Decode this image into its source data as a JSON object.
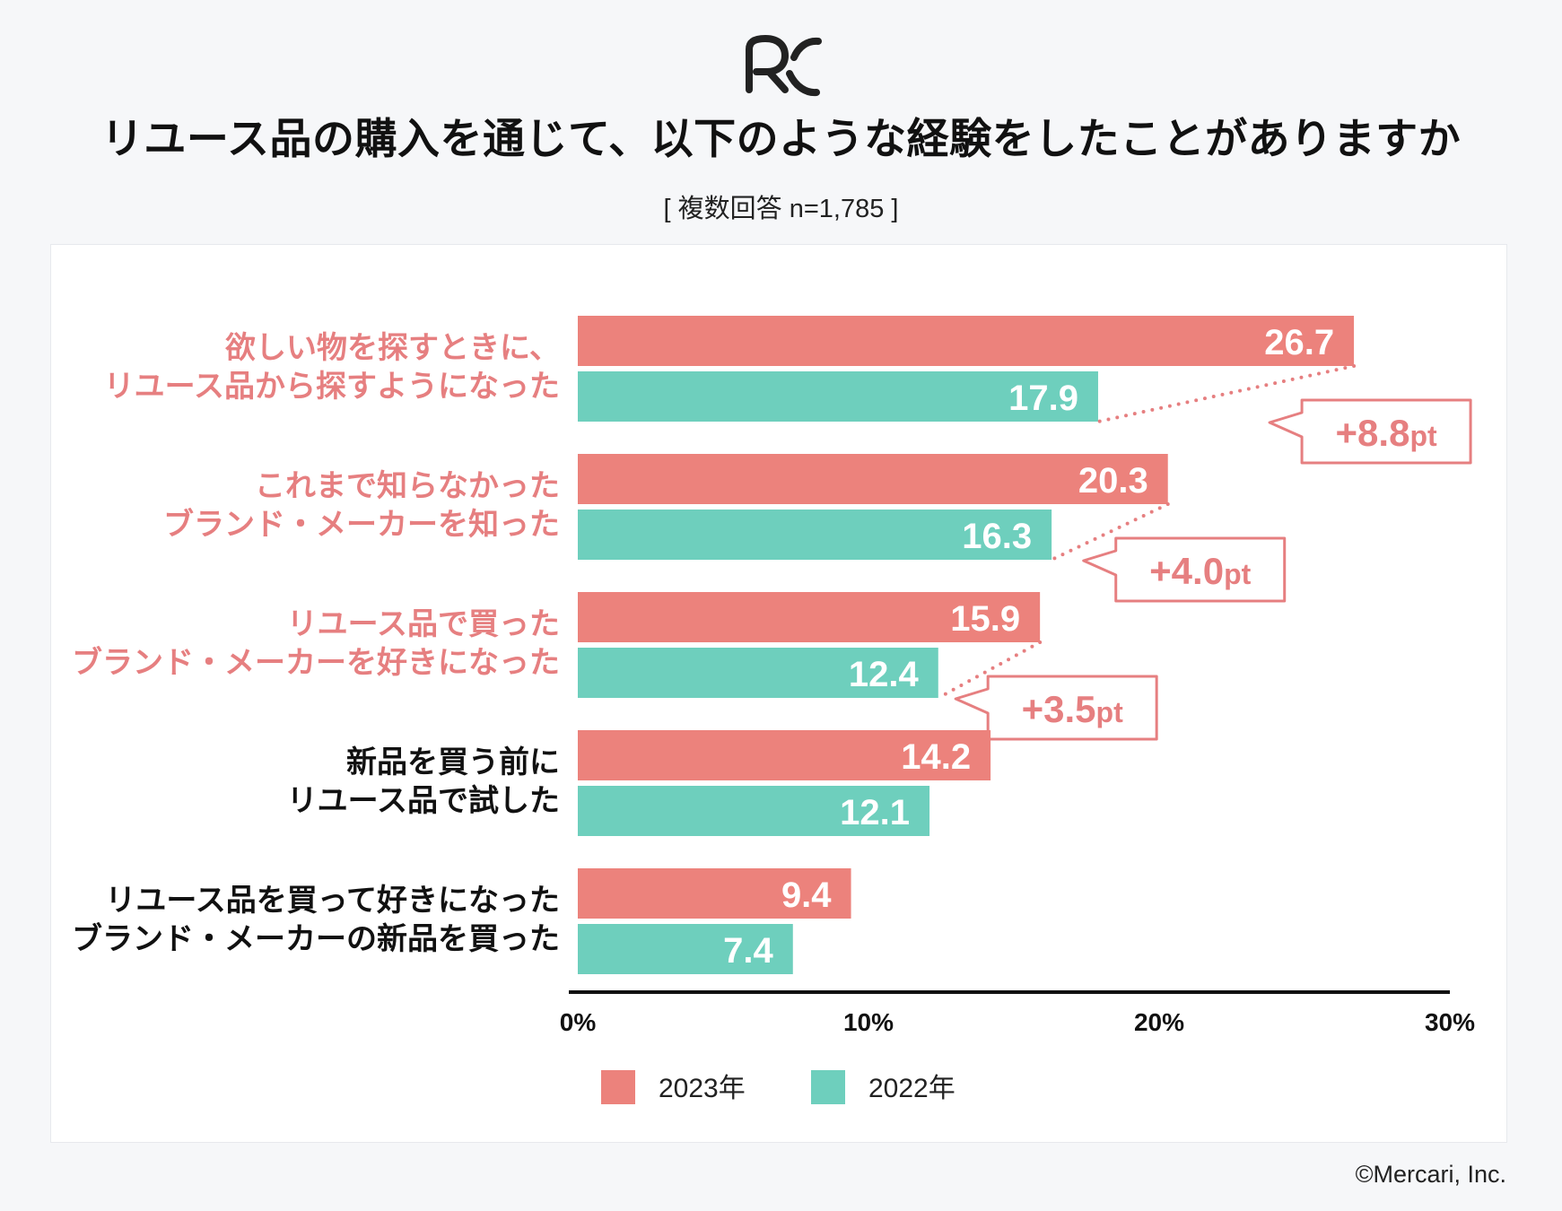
{
  "header": {
    "logo_name": "rc-logo",
    "title": "リユース品の購入を通じて、以下のような経験をしたことがありますか",
    "subtitle": "[ 複数回答 n=1,785 ]"
  },
  "colors": {
    "series_2023": "#ec827c",
    "series_2022": "#6ecfbd",
    "highlight": "#e67f80",
    "normal_text": "#111111",
    "axis": "#111111"
  },
  "chart_data": {
    "type": "bar",
    "orientation": "horizontal",
    "title": "リユース品の購入を通じて、以下のような経験をしたことがありますか",
    "subtitle": "[ 複数回答 n=1,785 ]",
    "xlabel": "",
    "ylabel": "",
    "xlim": [
      0,
      30
    ],
    "xticks": [
      0,
      10,
      20,
      30
    ],
    "tick_labels": [
      "0%",
      "10%",
      "20%",
      "30%"
    ],
    "legend_position": "bottom-center",
    "categories": [
      {
        "lines": [
          "欲しい物を探すときに、",
          "リユース品から探すようになった"
        ],
        "highlight": true,
        "difference": "+8.8pt"
      },
      {
        "lines": [
          "これまで知らなかった",
          "ブランド・メーカーを知った"
        ],
        "highlight": true,
        "difference": "+4.0pt"
      },
      {
        "lines": [
          "リユース品で買った",
          "ブランド・メーカーを好きになった"
        ],
        "highlight": true,
        "difference": "+3.5pt"
      },
      {
        "lines": [
          "新品を買う前に",
          "リユース品で試した"
        ],
        "highlight": false,
        "difference": ""
      },
      {
        "lines": [
          "リユース品を買って好きになった",
          "ブランド・メーカーの新品を買った"
        ],
        "highlight": false,
        "difference": ""
      }
    ],
    "series": [
      {
        "name": "2023年",
        "values": [
          26.7,
          20.3,
          15.9,
          14.2,
          9.4
        ]
      },
      {
        "name": "2022年",
        "values": [
          17.9,
          16.3,
          12.4,
          12.1,
          7.4
        ]
      }
    ]
  },
  "footer": {
    "copyright": "©Mercari, Inc."
  }
}
